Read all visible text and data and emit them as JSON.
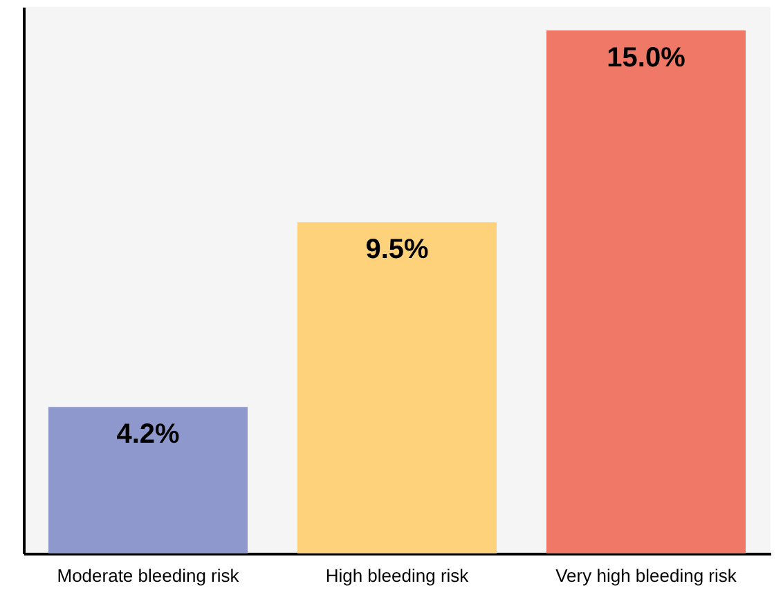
{
  "chart_data": {
    "type": "bar",
    "categories": [
      "Moderate bleeding risk",
      "High bleeding risk",
      "Very high bleeding risk"
    ],
    "values": [
      4.2,
      9.5,
      15.0
    ],
    "colors": [
      "#8f98cc",
      "#fdd27a",
      "#ef7866"
    ],
    "value_labels": [
      "4.2%",
      "9.5%",
      "15.0%"
    ],
    "grid": false
  }
}
